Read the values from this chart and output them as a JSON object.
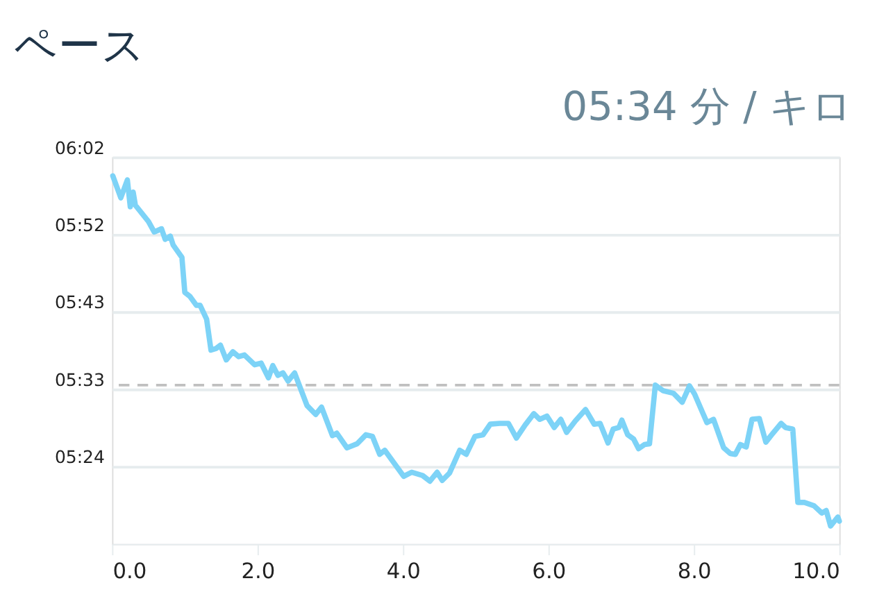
{
  "chart_data": {
    "type": "line",
    "title": "ペース",
    "subtitle": "05:34 分 / キロ",
    "x": [
      0.01,
      0.12,
      0.21,
      0.25,
      0.29,
      0.32,
      0.5,
      0.58,
      0.68,
      0.73,
      0.8,
      0.84,
      0.96,
      1.0,
      1.07,
      1.16,
      1.21,
      1.3,
      1.36,
      1.43,
      1.49,
      1.57,
      1.66,
      1.74,
      1.82,
      1.96,
      2.05,
      2.15,
      2.21,
      2.28,
      2.35,
      2.42,
      2.51,
      2.68,
      2.8,
      2.88,
      3.03,
      3.09,
      3.23,
      3.37,
      3.49,
      3.58,
      3.68,
      3.75,
      4.01,
      4.12,
      4.27,
      4.37,
      4.47,
      4.54,
      4.64,
      4.78,
      4.87,
      4.99,
      5.1,
      5.2,
      5.33,
      5.45,
      5.56,
      5.68,
      5.8,
      5.88,
      5.98,
      6.08,
      6.17,
      6.25,
      6.37,
      6.51,
      6.63,
      6.71,
      6.82,
      6.89,
      6.97,
      7.01,
      7.09,
      7.17,
      7.24,
      7.32,
      7.39,
      7.47,
      7.58,
      7.72,
      7.84,
      7.94,
      8.01,
      8.18,
      8.27,
      8.41,
      8.5,
      8.57,
      8.64,
      8.72,
      8.8,
      8.9,
      8.99,
      9.07,
      9.2,
      9.26,
      9.36,
      9.43,
      9.52,
      9.65,
      9.76,
      9.82,
      9.88,
      9.98,
      10.0
    ],
    "series": [
      {
        "color": "#7dd3f7",
        "values": [
          359.7,
          357.0,
          359.2,
          355.9,
          357.7,
          356.1,
          354.1,
          352.8,
          353.2,
          351.9,
          352.3,
          351.2,
          349.7,
          345.4,
          344.9,
          343.8,
          343.8,
          342.1,
          338.3,
          338.5,
          338.9,
          337.1,
          338.1,
          337.5,
          337.7,
          336.5,
          336.7,
          334.9,
          336.4,
          335.2,
          335.5,
          334.5,
          335.5,
          331.5,
          330.4,
          331.3,
          327.8,
          328.1,
          326.3,
          326.8,
          327.9,
          327.7,
          325.5,
          326.0,
          322.8,
          323.3,
          322.9,
          322.2,
          323.3,
          322.3,
          323.2,
          326.0,
          325.5,
          327.7,
          327.9,
          329.2,
          329.3,
          329.3,
          327.5,
          329.1,
          330.5,
          329.8,
          330.2,
          328.8,
          329.8,
          328.2,
          329.6,
          331.0,
          329.2,
          329.3,
          326.9,
          328.6,
          328.8,
          329.7,
          327.9,
          327.4,
          326.2,
          326.7,
          326.8,
          334.0,
          333.3,
          333.0,
          331.9,
          333.9,
          332.9,
          329.4,
          329.8,
          326.3,
          325.6,
          325.5,
          326.7,
          326.4,
          329.8,
          329.9,
          327.0,
          327.9,
          329.3,
          328.8,
          328.6,
          319.6,
          319.6,
          319.2,
          318.3,
          318.6,
          316.7,
          317.8,
          317.3
        ]
      }
    ],
    "xlim": [
      0,
      10
    ],
    "xticks": [
      {
        "value": 0,
        "label": "0.0"
      },
      {
        "value": 2,
        "label": "2.0"
      },
      {
        "value": 4,
        "label": "4.0"
      },
      {
        "value": 6,
        "label": "6.0"
      },
      {
        "value": 8,
        "label": "8.0"
      },
      {
        "value": 10,
        "label": "10.0"
      }
    ],
    "ylim": [
      314.5,
      362
    ],
    "yticks": [
      {
        "value": 324,
        "label": "05:24"
      },
      {
        "value": 333.5,
        "label": "05:33"
      },
      {
        "value": 343,
        "label": "05:43"
      },
      {
        "value": 352.5,
        "label": "05:52"
      },
      {
        "value": 362,
        "label": "06:02"
      }
    ],
    "ref_lines": [
      {
        "axis": "y",
        "value": 334,
        "color": "#c0c0c0",
        "line_style": "dashed"
      }
    ],
    "grid": "y",
    "marker": "none",
    "line_style": "solid"
  }
}
